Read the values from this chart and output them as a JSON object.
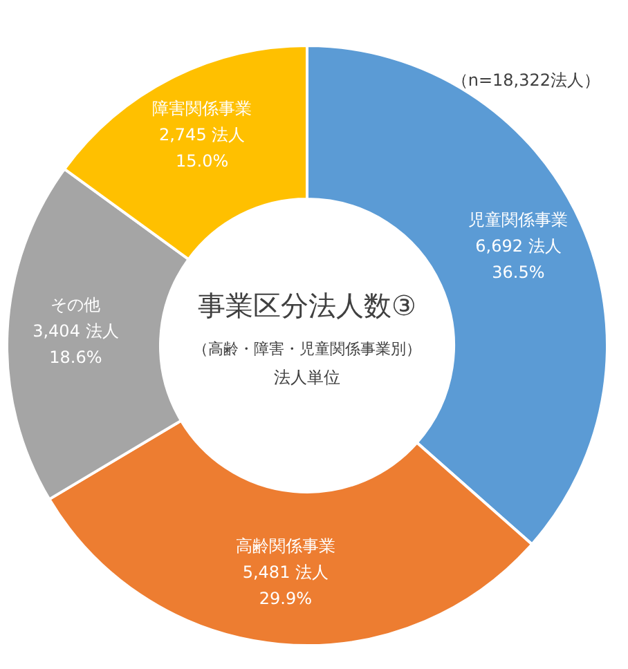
{
  "chart_data": {
    "type": "donut",
    "title": "事業区分法人数③",
    "subtitle": "（高齢・障害・児童関係事業別）",
    "categories": [
      "児童関係事業",
      "高齢関係事業",
      "その他",
      "障害関係事業"
    ],
    "values": [
      6692,
      5481,
      3404,
      2745
    ],
    "colors": [
      "#5b9bd5",
      "#ed7d31",
      "#a5a5a5",
      "#ffc000"
    ],
    "value_labels": [
      "6,692 法人\n36.5%",
      "5,481 法人\n29.9%",
      "3,404 法人\n18.6%",
      "2,745 法人\n15.0%"
    ],
    "annotations": [
      "法人単位",
      "（n=18,322法人）"
    ]
  }
}
